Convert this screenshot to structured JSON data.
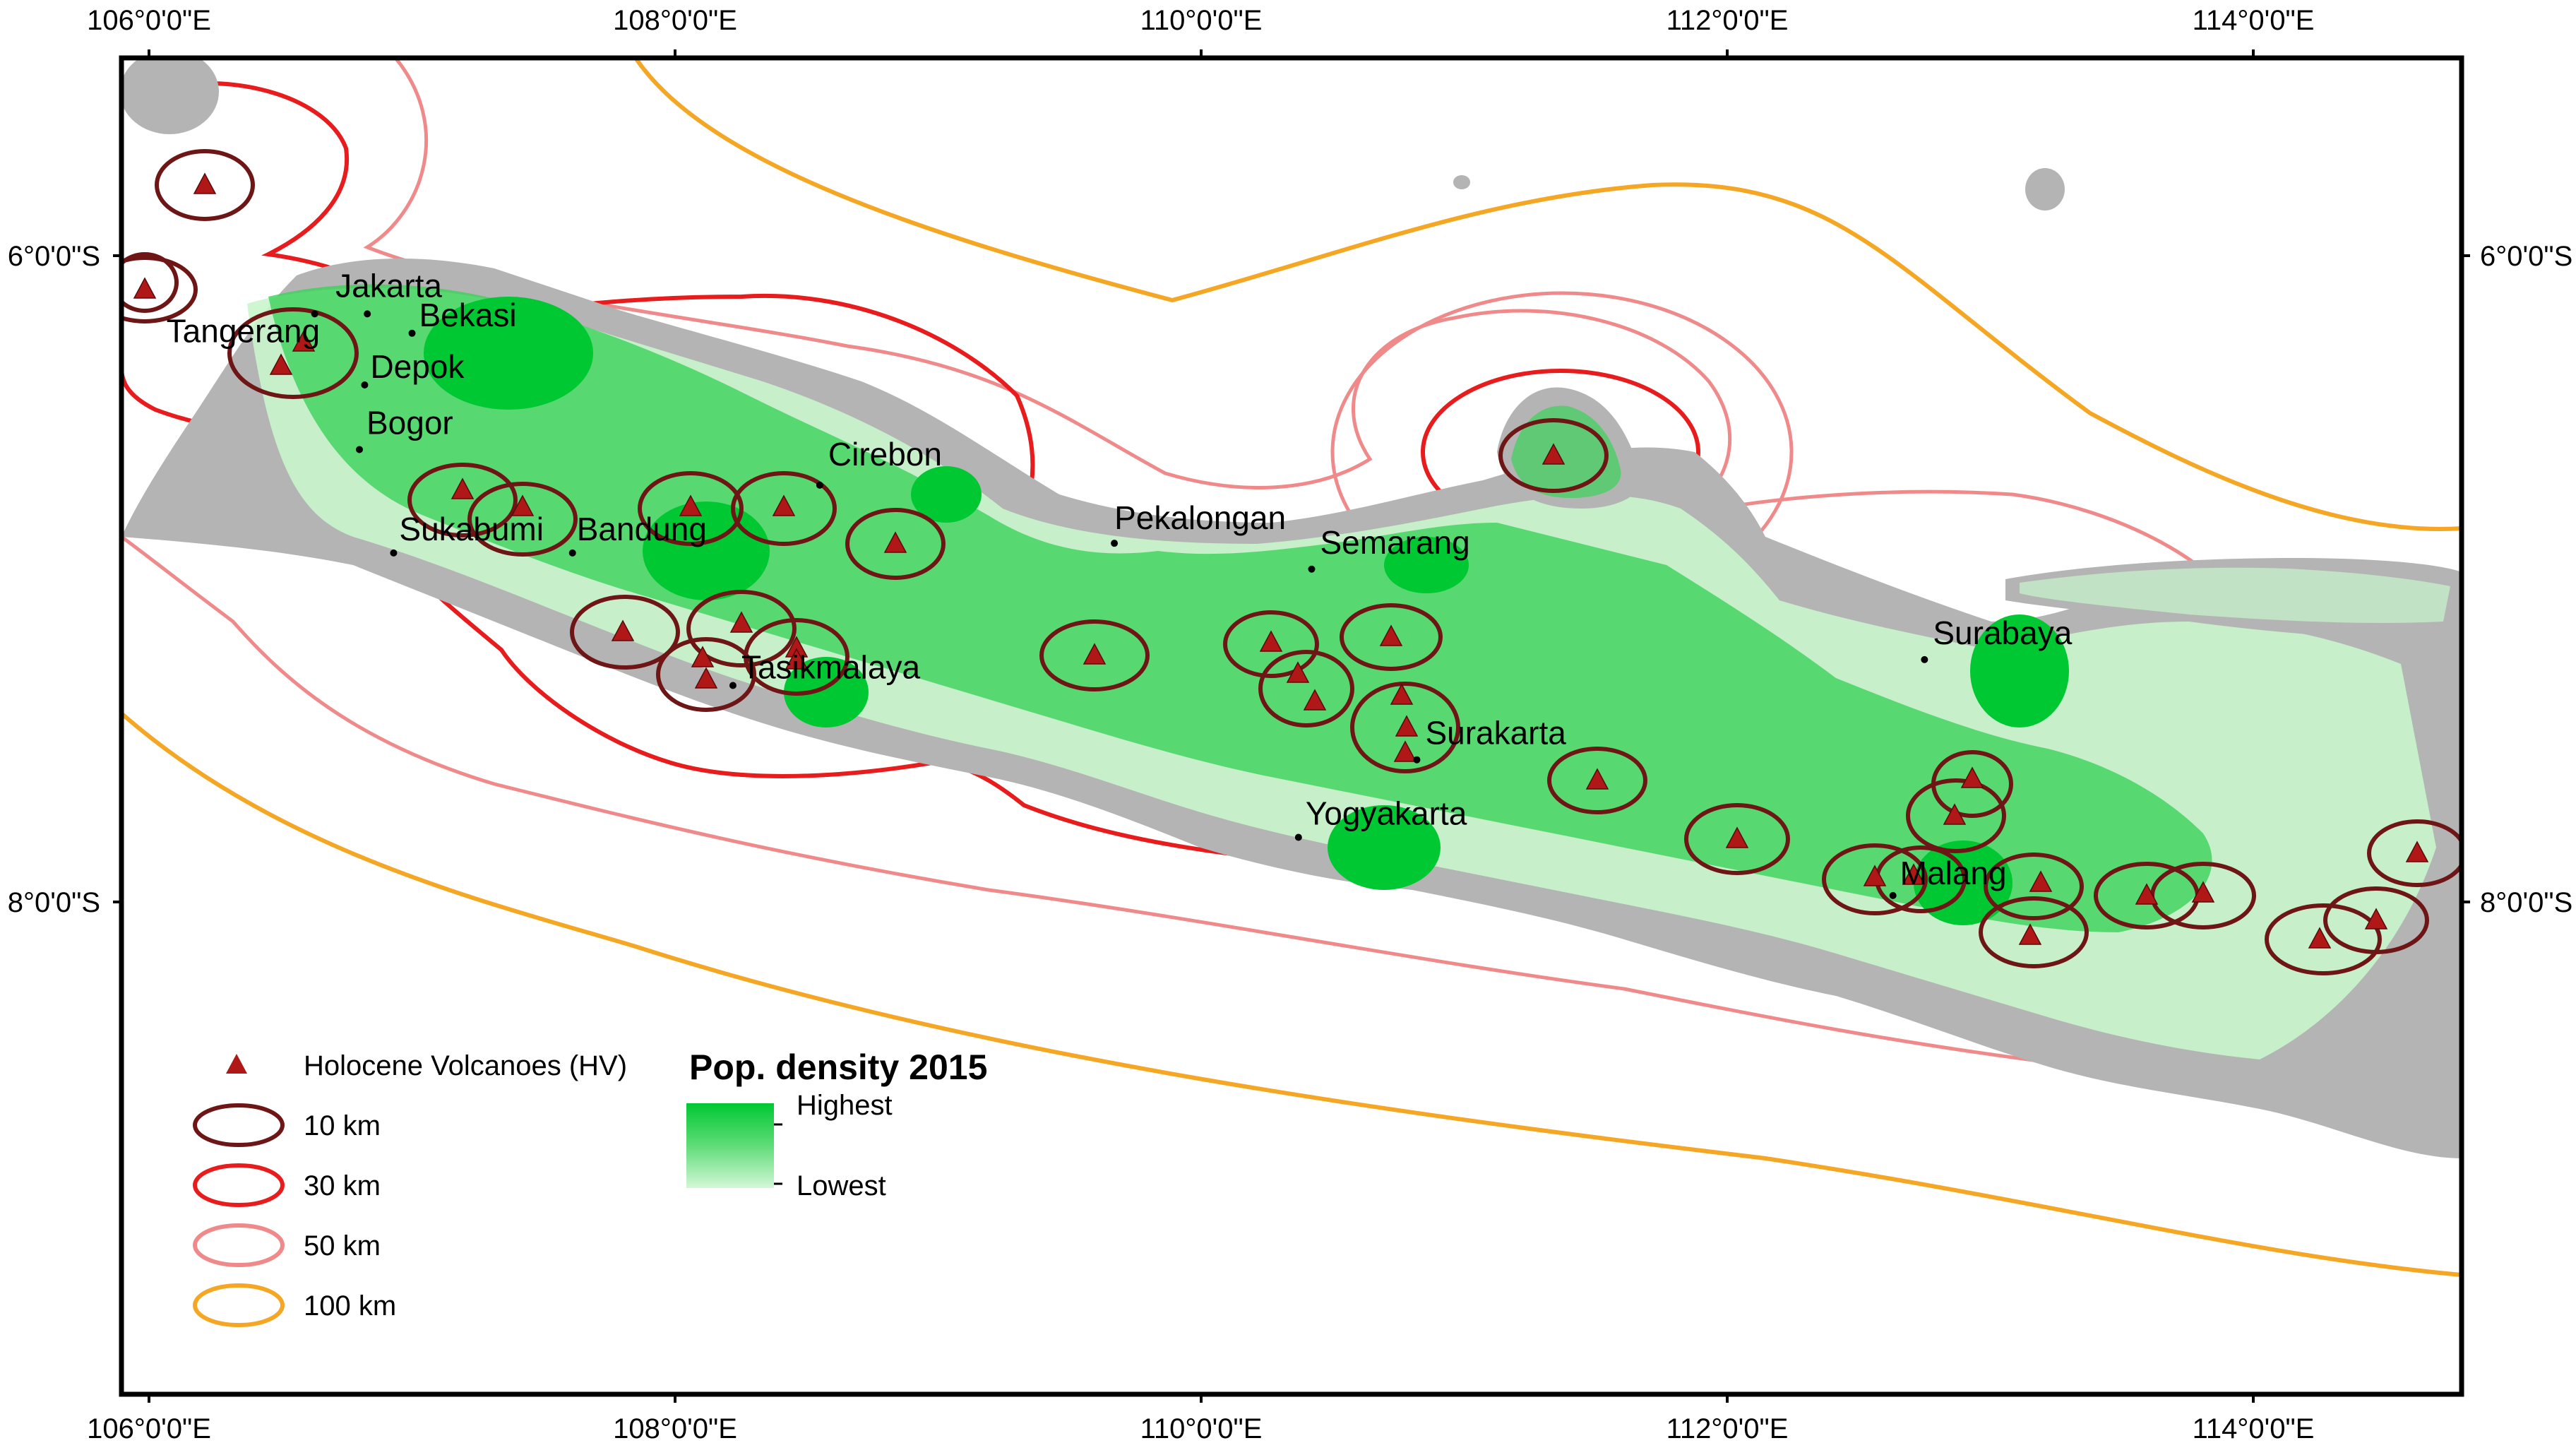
{
  "map": {
    "legend_title": "Pop. density 2015",
    "ramp_high_label": "Highest",
    "ramp_low_label": "Lowest",
    "legend": [
      {
        "label": "Holocene Volcanoes (HV)",
        "kind": "volcano",
        "color": "#b01818"
      },
      {
        "label": "10 km",
        "kind": "buffer",
        "color": "#6e1616"
      },
      {
        "label": "30 km",
        "kind": "buffer",
        "color": "#e81c1c"
      },
      {
        "label": "50 km",
        "kind": "buffer",
        "color": "#f08a8a"
      },
      {
        "label": "100 km",
        "kind": "buffer",
        "color": "#f5a623"
      }
    ],
    "longitude_labels": [
      "106°0'0\"E",
      "108°0'0\"E",
      "110°0'0\"E",
      "112°0'0\"E",
      "114°0'0\"E"
    ],
    "latitude_labels": [
      "6°0'0\"S",
      "8°0'0\"S"
    ],
    "cities": [
      {
        "name": "Jakarta",
        "lon": 106.83,
        "lat": -6.18
      },
      {
        "name": "Bekasi",
        "lon": 107.0,
        "lat": -6.24
      },
      {
        "name": "Tangerang",
        "lon": 106.63,
        "lat": -6.18
      },
      {
        "name": "Depok",
        "lon": 106.82,
        "lat": -6.4
      },
      {
        "name": "Bogor",
        "lon": 106.8,
        "lat": -6.6
      },
      {
        "name": "Sukabumi",
        "lon": 106.93,
        "lat": -6.92
      },
      {
        "name": "Bandung",
        "lon": 107.61,
        "lat": -6.92
      },
      {
        "name": "Cirebon",
        "lon": 108.55,
        "lat": -6.71
      },
      {
        "name": "Tasikmalaya",
        "lon": 108.22,
        "lat": -7.33
      },
      {
        "name": "Pekalongan",
        "lon": 109.67,
        "lat": -6.89
      },
      {
        "name": "Semarang",
        "lon": 110.42,
        "lat": -6.97
      },
      {
        "name": "Surabaya",
        "lon": 112.75,
        "lat": -7.25
      },
      {
        "name": "Surakarta",
        "lon": 110.82,
        "lat": -7.56
      },
      {
        "name": "Yogyakarta",
        "lon": 110.37,
        "lat": -7.8
      },
      {
        "name": "Malang",
        "lon": 112.63,
        "lat": -7.98
      }
    ],
    "colors": {
      "land_base": "#b4b4b4",
      "pop_high": "#00c832",
      "pop_mid": "#3cd25a",
      "pop_low": "#c8f5cc",
      "frame": "#000000"
    }
  }
}
